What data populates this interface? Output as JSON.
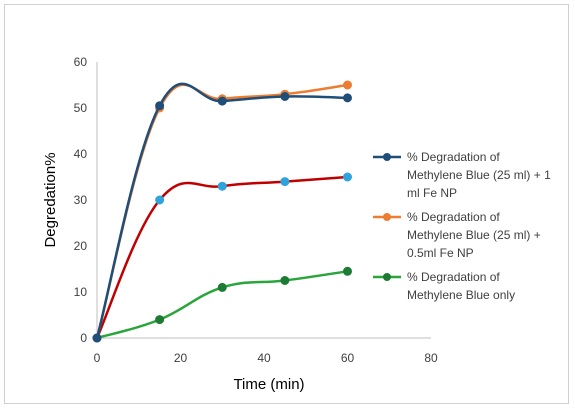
{
  "chart_data": {
    "type": "line",
    "title": "",
    "xlabel": "Time (min)",
    "ylabel": "Degredation%",
    "xlim": [
      0,
      80
    ],
    "ylim": [
      0,
      60
    ],
    "x_ticks": [
      0,
      20,
      40,
      60,
      80
    ],
    "y_ticks": [
      0,
      10,
      20,
      30,
      40,
      50,
      60
    ],
    "grid": false,
    "legend_position": "right",
    "smooth": true,
    "series": [
      {
        "name": "% Degradation of Methylene Blue (25 ml) + 1 ml Fe NP",
        "legend_lines": [
          "% Degradation of",
          "Methylene Blue (25 ml) + 1",
          "ml Fe NP"
        ],
        "color": "#1f4e79",
        "line_color": "#1f4e79",
        "x": [
          0,
          15,
          30,
          45,
          60
        ],
        "y": [
          0,
          50.5,
          51.5,
          52.5,
          52.2
        ]
      },
      {
        "name": "% Degradation of Methylene Blue (25 ml) + 0.5ml Fe NP",
        "legend_lines": [
          "% Degradation of",
          "Methylene Blue (25 ml) +",
          "0.5ml Fe NP"
        ],
        "color": "#ed7d31",
        "line_color": "#ed7d31",
        "x": [
          0,
          15,
          30,
          45,
          60
        ],
        "y": [
          0,
          50,
          52,
          53,
          55
        ]
      },
      {
        "name": "",
        "legend_lines": [],
        "color": "#2ea3dc",
        "line_color": "#c00000",
        "x": [
          0,
          15,
          30,
          45,
          60
        ],
        "y": [
          0,
          30,
          33,
          34,
          35
        ]
      },
      {
        "name": "% Degradation of Methylene Blue only",
        "legend_lines": [
          "% Degradation of",
          "Methylene Blue only"
        ],
        "color": "#1e7b34",
        "line_color": "#2aa53b",
        "x": [
          0,
          15,
          30,
          45,
          60
        ],
        "y": [
          0,
          4,
          11,
          12.5,
          14.5
        ]
      }
    ]
  }
}
